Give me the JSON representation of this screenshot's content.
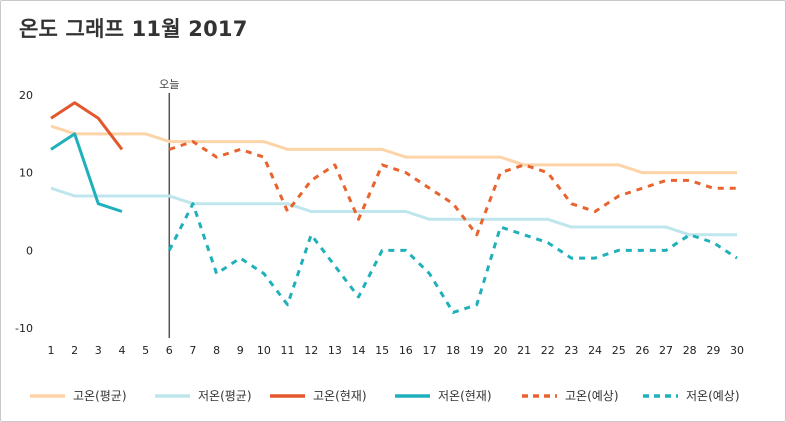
{
  "title": "온도 그래프 11월 2017",
  "chart_data": {
    "type": "line",
    "title": "온도 그래프 11월 2017",
    "xlabel": "",
    "ylabel": "",
    "x": [
      1,
      2,
      3,
      4,
      5,
      6,
      7,
      8,
      9,
      10,
      11,
      12,
      13,
      14,
      15,
      16,
      17,
      18,
      19,
      20,
      21,
      22,
      23,
      24,
      25,
      26,
      27,
      28,
      29,
      30
    ],
    "xlim": [
      1,
      30
    ],
    "ylim": [
      -10,
      20
    ],
    "yticks": [
      -10,
      0,
      10,
      20
    ],
    "grid": false,
    "legend_position": "bottom",
    "today_marker": {
      "x": 6,
      "label": "오늘"
    },
    "series": [
      {
        "name": "고온(평균)",
        "style": "solid",
        "color": "#fdd4a8",
        "x": [
          1,
          2,
          3,
          4,
          5,
          6,
          7,
          8,
          9,
          10,
          11,
          12,
          13,
          14,
          15,
          16,
          17,
          18,
          19,
          20,
          21,
          22,
          23,
          24,
          25,
          26,
          27,
          28,
          29,
          30
        ],
        "values": [
          16,
          15,
          15,
          15,
          15,
          14,
          14,
          14,
          14,
          14,
          13,
          13,
          13,
          13,
          13,
          12,
          12,
          12,
          12,
          12,
          11,
          11,
          11,
          11,
          11,
          10,
          10,
          10,
          10,
          10
        ]
      },
      {
        "name": "저온(평균)",
        "style": "solid",
        "color": "#bfe6ec",
        "x": [
          1,
          2,
          3,
          4,
          5,
          6,
          7,
          8,
          9,
          10,
          11,
          12,
          13,
          14,
          15,
          16,
          17,
          18,
          19,
          20,
          21,
          22,
          23,
          24,
          25,
          26,
          27,
          28,
          29,
          30
        ],
        "values": [
          8,
          7,
          7,
          7,
          7,
          7,
          6,
          6,
          6,
          6,
          6,
          5,
          5,
          5,
          5,
          5,
          4,
          4,
          4,
          4,
          4,
          4,
          3,
          3,
          3,
          3,
          3,
          2,
          2,
          2
        ]
      },
      {
        "name": "고온(현재)",
        "style": "solid",
        "color": "#e2572b",
        "x": [
          1,
          2,
          3,
          4
        ],
        "values": [
          17,
          19,
          17,
          13
        ]
      },
      {
        "name": "저온(현재)",
        "style": "solid",
        "color": "#1fb0bb",
        "x": [
          1,
          2,
          3,
          4
        ],
        "values": [
          13,
          15,
          6,
          5
        ]
      },
      {
        "name": "고온(예상)",
        "style": "dashed",
        "color": "#e8632d",
        "x": [
          6,
          7,
          8,
          9,
          10,
          11,
          12,
          13,
          14,
          15,
          16,
          17,
          18,
          19,
          20,
          21,
          22,
          23,
          24,
          25,
          26,
          27,
          28,
          29,
          30
        ],
        "values": [
          13,
          14,
          12,
          13,
          12,
          5,
          9,
          11,
          4,
          11,
          10,
          8,
          6,
          2,
          10,
          11,
          10,
          6,
          5,
          7,
          8,
          9,
          9,
          8,
          8
        ]
      },
      {
        "name": "저온(예상)",
        "style": "dashed",
        "color": "#1fb0bb",
        "x": [
          6,
          7,
          8,
          9,
          10,
          11,
          12,
          13,
          14,
          15,
          16,
          17,
          18,
          19,
          20,
          21,
          22,
          23,
          24,
          25,
          26,
          27,
          28,
          29,
          30
        ],
        "values": [
          0,
          6,
          -3,
          -1,
          -3,
          -7,
          2,
          -2,
          -6,
          0,
          0,
          -3,
          -8,
          -7,
          3,
          2,
          1,
          -1,
          -1,
          0,
          0,
          0,
          2,
          1,
          -1
        ]
      }
    ]
  }
}
